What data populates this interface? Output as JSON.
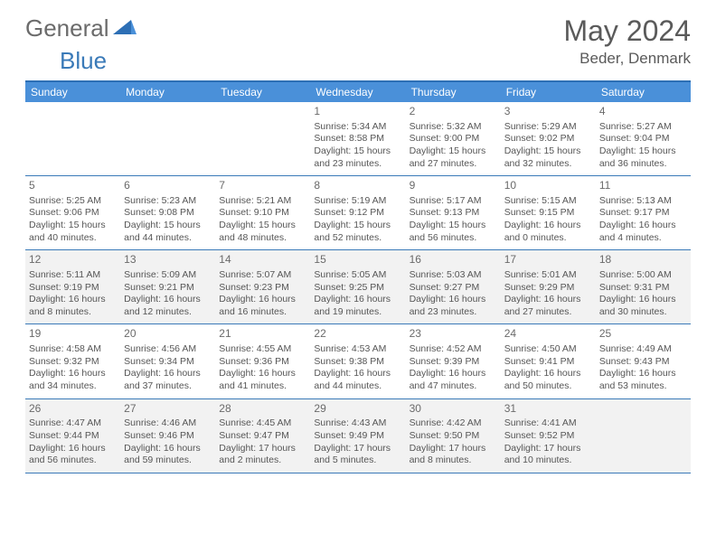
{
  "brand": {
    "part1": "General",
    "part2": "Blue"
  },
  "title": "May 2024",
  "location": "Beder, Denmark",
  "colors": {
    "header_bar": "#4a90d9",
    "rule": "#3a7ab8",
    "alt_bg": "#f2f2f2",
    "text": "#565656"
  },
  "dow": [
    "Sunday",
    "Monday",
    "Tuesday",
    "Wednesday",
    "Thursday",
    "Friday",
    "Saturday"
  ],
  "weeks": [
    [
      {
        "n": "",
        "alt": false
      },
      {
        "n": "",
        "alt": false
      },
      {
        "n": "",
        "alt": false
      },
      {
        "n": "1",
        "alt": false,
        "sr": "5:34 AM",
        "ss": "8:58 PM",
        "dl": "15 hours and 23 minutes."
      },
      {
        "n": "2",
        "alt": false,
        "sr": "5:32 AM",
        "ss": "9:00 PM",
        "dl": "15 hours and 27 minutes."
      },
      {
        "n": "3",
        "alt": false,
        "sr": "5:29 AM",
        "ss": "9:02 PM",
        "dl": "15 hours and 32 minutes."
      },
      {
        "n": "4",
        "alt": false,
        "sr": "5:27 AM",
        "ss": "9:04 PM",
        "dl": "15 hours and 36 minutes."
      }
    ],
    [
      {
        "n": "5",
        "alt": false,
        "sr": "5:25 AM",
        "ss": "9:06 PM",
        "dl": "15 hours and 40 minutes."
      },
      {
        "n": "6",
        "alt": false,
        "sr": "5:23 AM",
        "ss": "9:08 PM",
        "dl": "15 hours and 44 minutes."
      },
      {
        "n": "7",
        "alt": false,
        "sr": "5:21 AM",
        "ss": "9:10 PM",
        "dl": "15 hours and 48 minutes."
      },
      {
        "n": "8",
        "alt": false,
        "sr": "5:19 AM",
        "ss": "9:12 PM",
        "dl": "15 hours and 52 minutes."
      },
      {
        "n": "9",
        "alt": false,
        "sr": "5:17 AM",
        "ss": "9:13 PM",
        "dl": "15 hours and 56 minutes."
      },
      {
        "n": "10",
        "alt": false,
        "sr": "5:15 AM",
        "ss": "9:15 PM",
        "dl": "16 hours and 0 minutes."
      },
      {
        "n": "11",
        "alt": false,
        "sr": "5:13 AM",
        "ss": "9:17 PM",
        "dl": "16 hours and 4 minutes."
      }
    ],
    [
      {
        "n": "12",
        "alt": true,
        "sr": "5:11 AM",
        "ss": "9:19 PM",
        "dl": "16 hours and 8 minutes."
      },
      {
        "n": "13",
        "alt": true,
        "sr": "5:09 AM",
        "ss": "9:21 PM",
        "dl": "16 hours and 12 minutes."
      },
      {
        "n": "14",
        "alt": true,
        "sr": "5:07 AM",
        "ss": "9:23 PM",
        "dl": "16 hours and 16 minutes."
      },
      {
        "n": "15",
        "alt": true,
        "sr": "5:05 AM",
        "ss": "9:25 PM",
        "dl": "16 hours and 19 minutes."
      },
      {
        "n": "16",
        "alt": true,
        "sr": "5:03 AM",
        "ss": "9:27 PM",
        "dl": "16 hours and 23 minutes."
      },
      {
        "n": "17",
        "alt": true,
        "sr": "5:01 AM",
        "ss": "9:29 PM",
        "dl": "16 hours and 27 minutes."
      },
      {
        "n": "18",
        "alt": true,
        "sr": "5:00 AM",
        "ss": "9:31 PM",
        "dl": "16 hours and 30 minutes."
      }
    ],
    [
      {
        "n": "19",
        "alt": false,
        "sr": "4:58 AM",
        "ss": "9:32 PM",
        "dl": "16 hours and 34 minutes."
      },
      {
        "n": "20",
        "alt": false,
        "sr": "4:56 AM",
        "ss": "9:34 PM",
        "dl": "16 hours and 37 minutes."
      },
      {
        "n": "21",
        "alt": false,
        "sr": "4:55 AM",
        "ss": "9:36 PM",
        "dl": "16 hours and 41 minutes."
      },
      {
        "n": "22",
        "alt": false,
        "sr": "4:53 AM",
        "ss": "9:38 PM",
        "dl": "16 hours and 44 minutes."
      },
      {
        "n": "23",
        "alt": false,
        "sr": "4:52 AM",
        "ss": "9:39 PM",
        "dl": "16 hours and 47 minutes."
      },
      {
        "n": "24",
        "alt": false,
        "sr": "4:50 AM",
        "ss": "9:41 PM",
        "dl": "16 hours and 50 minutes."
      },
      {
        "n": "25",
        "alt": false,
        "sr": "4:49 AM",
        "ss": "9:43 PM",
        "dl": "16 hours and 53 minutes."
      }
    ],
    [
      {
        "n": "26",
        "alt": true,
        "sr": "4:47 AM",
        "ss": "9:44 PM",
        "dl": "16 hours and 56 minutes."
      },
      {
        "n": "27",
        "alt": true,
        "sr": "4:46 AM",
        "ss": "9:46 PM",
        "dl": "16 hours and 59 minutes."
      },
      {
        "n": "28",
        "alt": true,
        "sr": "4:45 AM",
        "ss": "9:47 PM",
        "dl": "17 hours and 2 minutes."
      },
      {
        "n": "29",
        "alt": true,
        "sr": "4:43 AM",
        "ss": "9:49 PM",
        "dl": "17 hours and 5 minutes."
      },
      {
        "n": "30",
        "alt": true,
        "sr": "4:42 AM",
        "ss": "9:50 PM",
        "dl": "17 hours and 8 minutes."
      },
      {
        "n": "31",
        "alt": true,
        "sr": "4:41 AM",
        "ss": "9:52 PM",
        "dl": "17 hours and 10 minutes."
      },
      {
        "n": "",
        "alt": true
      }
    ]
  ],
  "labels": {
    "sunrise": "Sunrise: ",
    "sunset": "Sunset: ",
    "daylight": "Daylight: "
  }
}
